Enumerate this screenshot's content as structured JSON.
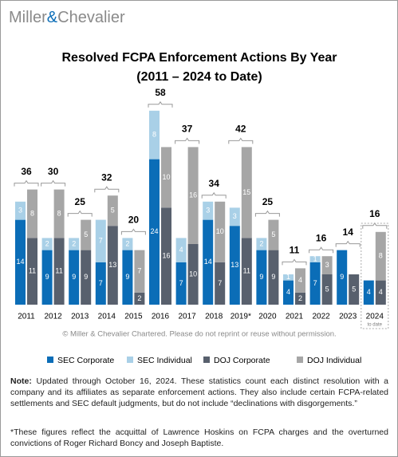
{
  "logo": {
    "left": "Miller",
    "amp": "&",
    "right": "Chevalier"
  },
  "chart_data": {
    "type": "grouped-stacked-bar",
    "title": "Resolved FCPA Enforcement Actions By Year",
    "subtitle": "(2011 – 2024 to Date)",
    "categories": [
      "2011",
      "2012",
      "2013",
      "2014",
      "2015",
      "2016",
      "2017",
      "2018",
      "2019*",
      "2020",
      "2021",
      "2022",
      "2023",
      "2024"
    ],
    "category_note": "to date",
    "series": [
      {
        "name": "SEC Corporate",
        "color": "#0b6db7",
        "stack": "left",
        "values": [
          14,
          9,
          9,
          7,
          9,
          24,
          7,
          14,
          13,
          9,
          4,
          7,
          9,
          4
        ]
      },
      {
        "name": "SEC Individual",
        "color": "#a9d0e7",
        "stack": "left",
        "values": [
          3,
          2,
          2,
          7,
          2,
          8,
          4,
          3,
          3,
          2,
          1,
          1,
          null,
          null
        ]
      },
      {
        "name": "DOJ Corporate",
        "color": "#58606d",
        "stack": "right",
        "values": [
          11,
          11,
          9,
          13,
          2,
          16,
          10,
          7,
          11,
          9,
          2,
          5,
          5,
          4
        ]
      },
      {
        "name": "DOJ Individual",
        "color": "#a6a6a6",
        "stack": "right",
        "values": [
          8,
          8,
          5,
          5,
          7,
          10,
          16,
          10,
          15,
          5,
          4,
          3,
          null,
          8
        ]
      }
    ],
    "totals": [
      36,
      30,
      25,
      32,
      20,
      58,
      37,
      34,
      42,
      25,
      11,
      16,
      14,
      16
    ],
    "credit": "© Miller & Chevalier Chartered. Please do not reprint or reuse without permission."
  },
  "notes": {
    "label": "Note:",
    "text": "Updated through October 16, 2024. These statistics count each distinct resolution with a company and its affiliates as separate enforcement actions. They also include certain FCPA-related settlements and SEC default judgments, but do not include “declinations with disgorgements.”",
    "footnote": "*These figures reflect the acquittal of Lawrence Hoskins on FCPA charges and the overturned convictions of Roger Richard Boncy and Joseph Baptiste."
  }
}
